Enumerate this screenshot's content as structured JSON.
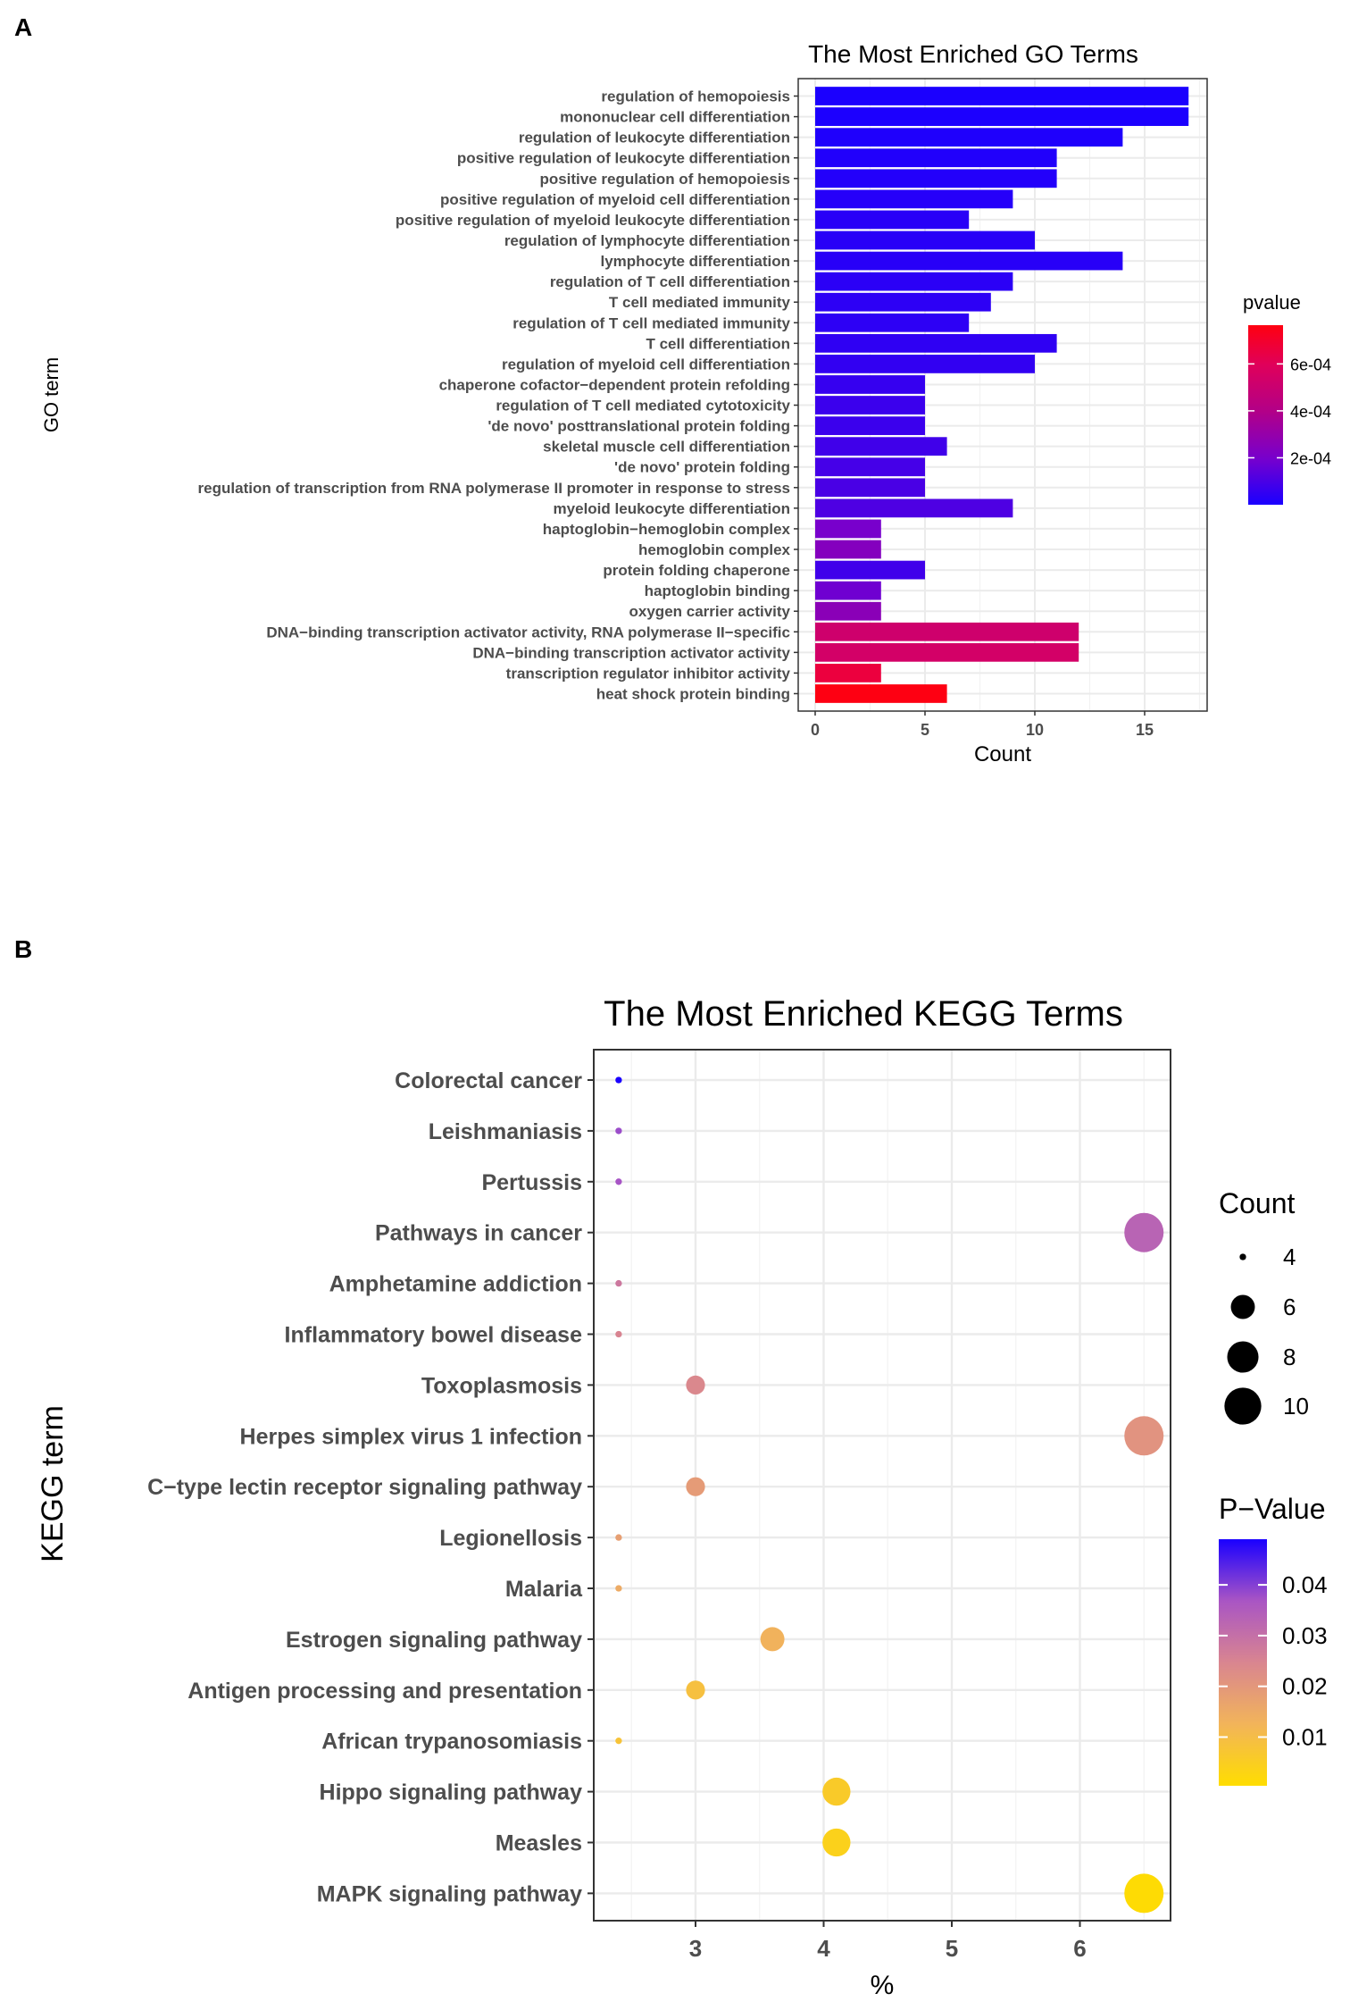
{
  "panel_a_label": "A",
  "panel_b_label": "B",
  "chart_data": [
    {
      "type": "bar",
      "orientation": "horizontal",
      "title": "The Most Enriched GO Terms",
      "xlabel": "Count",
      "ylabel": "GO term",
      "xlim": [
        0,
        17.8
      ],
      "xticks": [
        0,
        5,
        10,
        15
      ],
      "grid": true,
      "legend": {
        "title": "pvalue",
        "position": "right",
        "range": [
          0,
          0.000765
        ],
        "ticks": [
          0.0002,
          0.0004,
          0.0006
        ],
        "tick_labels": [
          "2e-04",
          "4e-04",
          "6e-04"
        ],
        "low_color": "#1a00ff",
        "high_color": "#ff0010"
      },
      "categories": [
        "regulation of hemopoiesis",
        "mononuclear cell differentiation",
        "regulation of leukocyte differentiation",
        "positive regulation of leukocyte differentiation",
        "positive regulation of hemopoiesis",
        "positive regulation of myeloid cell differentiation",
        "positive regulation of myeloid leukocyte differentiation",
        "regulation of lymphocyte differentiation",
        "lymphocyte differentiation",
        "regulation of T cell differentiation",
        "T cell mediated immunity",
        "regulation of T cell mediated immunity",
        "T cell differentiation",
        "regulation of myeloid cell differentiation",
        "chaperone cofactor−dependent protein refolding",
        "regulation of T cell mediated cytotoxicity",
        "'de novo' posttranslational protein folding",
        "skeletal muscle cell differentiation",
        "'de novo' protein folding",
        "regulation of transcription from RNA polymerase II promoter in response to stress",
        "myeloid leukocyte differentiation",
        "haptoglobin−hemoglobin complex",
        "hemoglobin complex",
        "protein folding chaperone",
        "haptoglobin binding",
        "oxygen carrier activity",
        "DNA−binding transcription activator activity, RNA polymerase II−specific",
        "DNA−binding transcription activator activity",
        "transcription regulator inhibitor activity",
        "heat shock protein binding"
      ],
      "values": [
        17,
        17,
        14,
        11,
        11,
        9,
        7,
        10,
        14,
        9,
        8,
        7,
        11,
        10,
        5,
        5,
        5,
        6,
        5,
        5,
        9,
        3,
        3,
        5,
        3,
        3,
        12,
        12,
        3,
        6
      ],
      "pvalues": [
        2e-06,
        4e-06,
        1e-05,
        1.5e-05,
        2e-05,
        2.5e-05,
        3e-05,
        3e-05,
        3e-05,
        3.5e-05,
        4e-05,
        4e-05,
        4.5e-05,
        5e-05,
        6e-05,
        7e-05,
        7e-05,
        8e-05,
        9e-05,
        0.0001,
        0.00011,
        0.0002,
        0.00024,
        8e-05,
        0.00018,
        0.00026,
        0.00052,
        0.00054,
        0.00066,
        0.00076
      ]
    },
    {
      "type": "scatter",
      "title": "The Most Enriched KEGG Terms",
      "xlabel": "%",
      "ylabel": "KEGG term",
      "xlim": [
        2.21,
        6.71
      ],
      "xticks": [
        3,
        4,
        5,
        6
      ],
      "grid": true,
      "size_legend": {
        "title": "Count",
        "values": [
          4,
          6,
          8,
          10
        ],
        "position": "right"
      },
      "color_legend": {
        "title": "P−Value",
        "position": "right",
        "range": [
          0.0004,
          0.049
        ],
        "ticks": [
          0.01,
          0.02,
          0.03,
          0.04
        ],
        "tick_labels": [
          "0.01",
          "0.02",
          "0.03",
          "0.04"
        ],
        "low_color": "#ffdd00",
        "high_color": "#1a00ff"
      },
      "categories": [
        "Colorectal cancer",
        "Leishmaniasis",
        "Pertussis",
        "Pathways in cancer",
        "Amphetamine addiction",
        "Inflammatory bowel disease",
        "Toxoplasmosis",
        "Herpes simplex virus 1 infection",
        "C−type lectin receptor signaling pathway",
        "Legionellosis",
        "Malaria",
        "Estrogen signaling pathway",
        "Antigen processing and presentation",
        "African trypanosomiasis",
        "Hippo signaling pathway",
        "Measles",
        "MAPK signaling pathway"
      ],
      "x": [
        2.4,
        2.4,
        2.4,
        6.5,
        2.4,
        2.4,
        3.0,
        6.5,
        3.0,
        2.4,
        2.4,
        3.6,
        3.0,
        2.4,
        4.1,
        4.1,
        6.5
      ],
      "count": [
        4,
        4,
        4,
        11,
        4,
        4,
        5,
        11,
        5,
        4,
        4,
        6,
        5,
        4,
        7,
        7,
        11
      ],
      "pvalue": [
        0.049,
        0.038,
        0.037,
        0.033,
        0.028,
        0.025,
        0.024,
        0.021,
        0.019,
        0.018,
        0.015,
        0.013,
        0.009,
        0.008,
        0.006,
        0.004,
        0.001
      ]
    }
  ]
}
